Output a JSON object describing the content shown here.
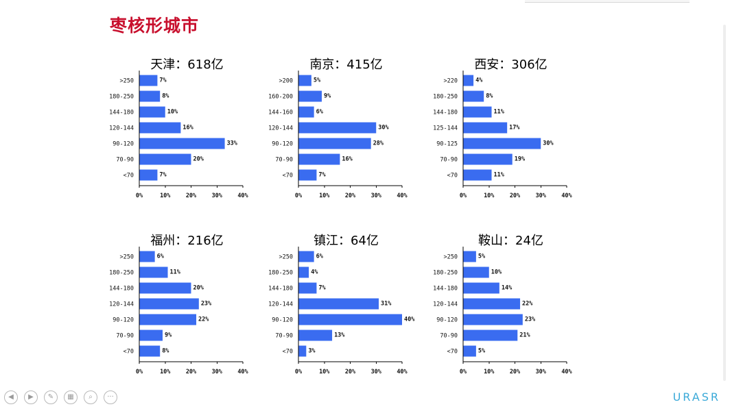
{
  "slide": {
    "title": "枣核形城市"
  },
  "toolbar": {
    "buttons": [
      {
        "name": "prev-button",
        "icon": "arrow-left-icon",
        "glyph": "◀"
      },
      {
        "name": "next-button",
        "icon": "arrow-right-icon",
        "glyph": "▶"
      },
      {
        "name": "pen-button",
        "icon": "pen-icon",
        "glyph": "✎"
      },
      {
        "name": "slides-button",
        "icon": "slides-icon",
        "glyph": "▦"
      },
      {
        "name": "zoom-button",
        "icon": "magnifier-icon",
        "glyph": "⌕"
      },
      {
        "name": "more-button",
        "icon": "more-icon",
        "glyph": "···"
      }
    ]
  },
  "brand": {
    "text": "URASR"
  },
  "colors": {
    "bar": "#3a6cf0",
    "title": "#c8102e",
    "brand": "#3aa9d8"
  },
  "chart_data": [
    {
      "type": "bar",
      "orientation": "horizontal",
      "title": "天津：618亿",
      "categories": [
        ">250",
        "180-250",
        "144-180",
        "120-144",
        "90-120",
        "70-90",
        "<70"
      ],
      "values": [
        7,
        8,
        10,
        16,
        33,
        20,
        7
      ],
      "value_labels": [
        "7%",
        "8%",
        "10%",
        "16%",
        "33%",
        "20%",
        "7%"
      ],
      "xlim": [
        0,
        40
      ],
      "xticks": [
        "0%",
        "10%",
        "20%",
        "30%",
        "40%"
      ],
      "grid": false,
      "legend": "none"
    },
    {
      "type": "bar",
      "orientation": "horizontal",
      "title": "南京：415亿",
      "categories": [
        ">200",
        "160-200",
        "144-160",
        "120-144",
        "90-120",
        "70-90",
        "<70"
      ],
      "values": [
        5,
        9,
        6,
        30,
        28,
        16,
        7
      ],
      "value_labels": [
        "5%",
        "9%",
        "6%",
        "30%",
        "28%",
        "16%",
        "7%"
      ],
      "xlim": [
        0,
        40
      ],
      "xticks": [
        "0%",
        "10%",
        "20%",
        "30%",
        "40%"
      ],
      "grid": false,
      "legend": "none"
    },
    {
      "type": "bar",
      "orientation": "horizontal",
      "title": "西安：306亿",
      "categories": [
        ">220",
        "180-250",
        "144-180",
        "125-144",
        "90-125",
        "70-90",
        "<70"
      ],
      "values": [
        4,
        8,
        11,
        17,
        30,
        19,
        11
      ],
      "value_labels": [
        "4%",
        "8%",
        "11%",
        "17%",
        "30%",
        "19%",
        "11%"
      ],
      "xlim": [
        0,
        40
      ],
      "xticks": [
        "0%",
        "10%",
        "20%",
        "30%",
        "40%"
      ],
      "grid": false,
      "legend": "none"
    },
    {
      "type": "bar",
      "orientation": "horizontal",
      "title": "福州：216亿",
      "categories": [
        ">250",
        "180-250",
        "144-180",
        "120-144",
        "90-120",
        "70-90",
        "<70"
      ],
      "values": [
        6,
        11,
        20,
        23,
        22,
        9,
        8
      ],
      "value_labels": [
        "6%",
        "11%",
        "20%",
        "23%",
        "22%",
        "9%",
        "8%"
      ],
      "xlim": [
        0,
        40
      ],
      "xticks": [
        "0%",
        "10%",
        "20%",
        "30%",
        "40%"
      ],
      "grid": false,
      "legend": "none"
    },
    {
      "type": "bar",
      "orientation": "horizontal",
      "title": "镇江：64亿",
      "categories": [
        ">250",
        "180-250",
        "144-180",
        "120-144",
        "90-120",
        "70-90",
        "<70"
      ],
      "values": [
        6,
        4,
        7,
        31,
        40,
        13,
        3
      ],
      "value_labels": [
        "6%",
        "4%",
        "7%",
        "31%",
        "40%",
        "13%",
        "3%"
      ],
      "xlim": [
        0,
        40
      ],
      "xticks": [
        "0%",
        "10%",
        "20%",
        "30%",
        "40%"
      ],
      "grid": false,
      "legend": "none"
    },
    {
      "type": "bar",
      "orientation": "horizontal",
      "title": "鞍山：24亿",
      "categories": [
        ">250",
        "180-250",
        "144-180",
        "120-144",
        "90-120",
        "70-90",
        "<70"
      ],
      "values": [
        5,
        10,
        14,
        22,
        23,
        21,
        5
      ],
      "value_labels": [
        "5%",
        "10%",
        "14%",
        "22%",
        "23%",
        "21%",
        "5%"
      ],
      "xlim": [
        0,
        40
      ],
      "xticks": [
        "0%",
        "10%",
        "20%",
        "30%",
        "40%"
      ],
      "grid": false,
      "legend": "none"
    }
  ]
}
